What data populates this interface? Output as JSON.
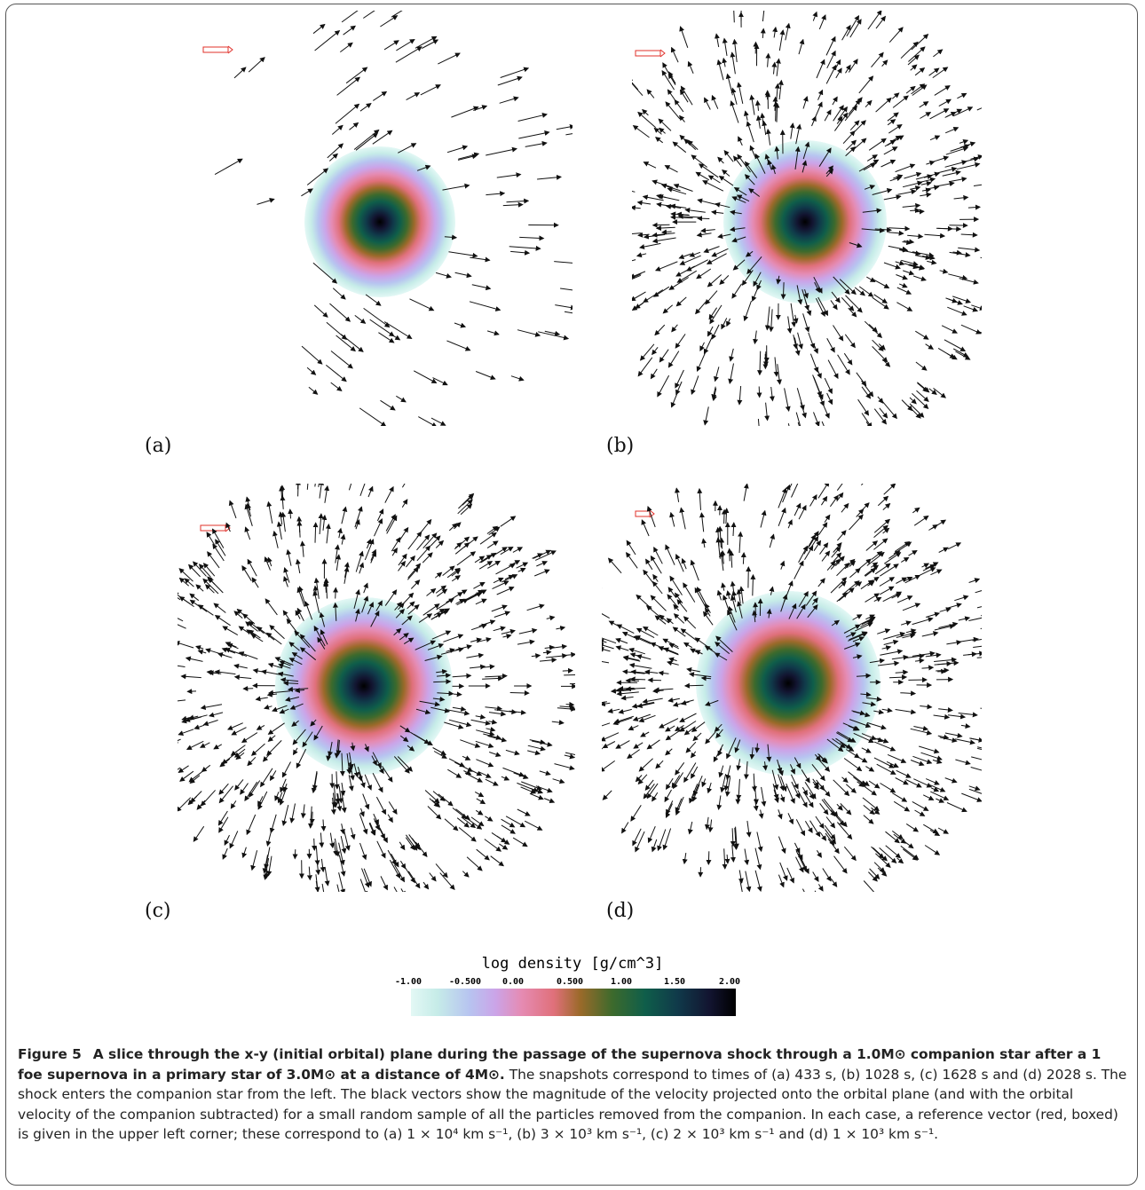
{
  "panels": [
    {
      "label": "(a)"
    },
    {
      "label": "(b)"
    },
    {
      "label": "(c)"
    },
    {
      "label": "(d)"
    }
  ],
  "colorbar": {
    "title": "log density [g/cm^3]",
    "ticks": [
      "-1.00",
      "-0.500",
      "0.00",
      "0.500",
      "1.00",
      "1.50",
      "2.00"
    ],
    "colors": [
      "#e3f8f5",
      "#c6ece8",
      "#b7c4f0",
      "#cba4e8",
      "#e58bb3",
      "#e0707a",
      "#9b6a2a",
      "#3d6a2c",
      "#0f5e4a",
      "#103a4a",
      "#121430",
      "#000000"
    ]
  },
  "reference_vector_color": "#e0302a",
  "caption": {
    "figure_label": "Figure 5",
    "title": "A slice through the x-y (initial orbital) plane during the passage of the supernova shock through a 1.0M⊙ companion star after a 1 foe supernova in a primary star of 3.0M⊙ at a distance of 4M⊙.",
    "body": "The snapshots correspond to times of (a) 433 s, (b) 1028 s, (c) 1628 s and (d) 2028 s. The shock enters the companion star from the left. The black vectors show the magnitude of the velocity projected onto the orbital plane (and with the orbital velocity of the companion subtracted) for a small random sample of all the particles removed from the companion. In each case, a reference vector (red, boxed) is given in the upper left corner; these correspond to (a) 1 × 10⁴ km s⁻¹, (b) 3 × 10³ km s⁻¹, (c) 2 × 10³ km s⁻¹ and (d) 1 × 10³ km s⁻¹."
  }
}
